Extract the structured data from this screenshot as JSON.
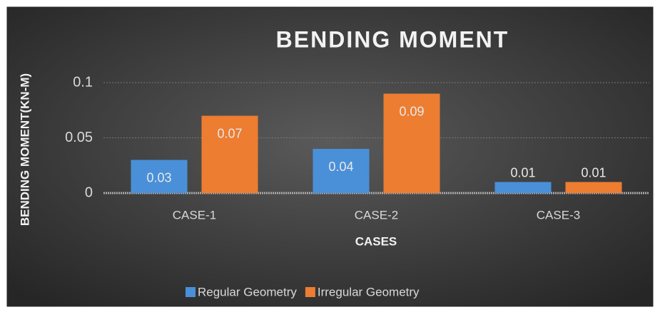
{
  "chart_data": {
    "type": "bar",
    "title": "BENDING MOMENT",
    "y_label": "BENDING MOMENT(KN-M)",
    "x_label": "CASES",
    "categories": [
      "CASE-1",
      "CASE-2",
      "CASE-3"
    ],
    "series": [
      {
        "name": "Regular Geometry",
        "color": "#4a90d9",
        "values": [
          0.03,
          0.04,
          0.01
        ]
      },
      {
        "name": "Irregular Geometry",
        "color": "#ed7d31",
        "values": [
          0.07,
          0.09,
          0.01
        ]
      }
    ],
    "ylim": [
      0,
      0.1
    ],
    "yticks": [
      0,
      0.05,
      0.1
    ],
    "grid": true,
    "legend": "bottom"
  }
}
